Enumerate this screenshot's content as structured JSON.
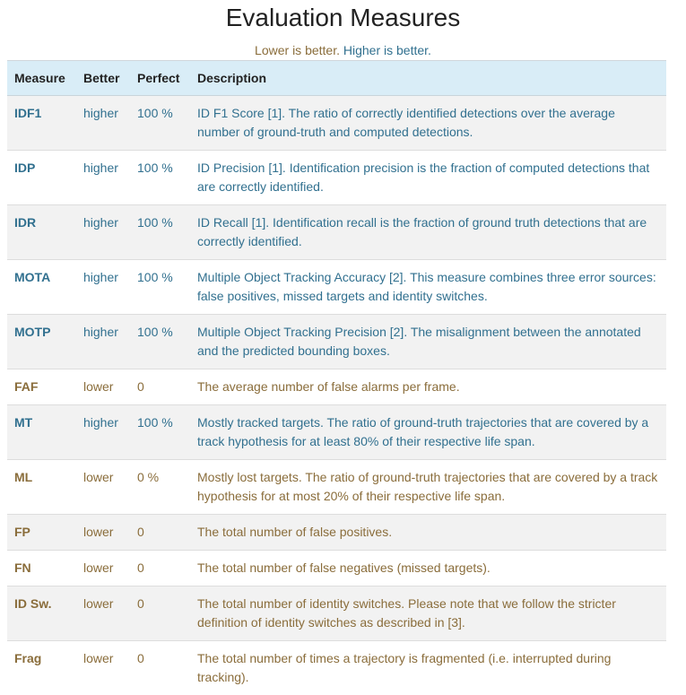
{
  "title": "Evaluation Measures",
  "legend": {
    "lower": "Lower is better.",
    "higher": "Higher is better."
  },
  "colors": {
    "header_bg": "#d9edf7",
    "higher_text": "#31708f",
    "lower_text": "#8a6d3b",
    "stripe": "#f2f2f2"
  },
  "table": {
    "headers": {
      "measure": "Measure",
      "better": "Better",
      "perfect": "Perfect",
      "description": "Description"
    },
    "rows": [
      {
        "measure": "IDF1",
        "better": "higher",
        "perfect": "100 %",
        "description": "ID F1 Score [1]. The ratio of correctly identified detections over the average number of ground-truth and computed detections."
      },
      {
        "measure": "IDP",
        "better": "higher",
        "perfect": "100 %",
        "description": "ID Precision [1]. Identification precision is the fraction of computed detections that are correctly identified."
      },
      {
        "measure": "IDR",
        "better": "higher",
        "perfect": "100 %",
        "description": "ID Recall [1]. Identification recall is the fraction of ground truth detections that are correctly identified."
      },
      {
        "measure": "MOTA",
        "better": "higher",
        "perfect": "100 %",
        "description": "Multiple Object Tracking Accuracy [2]. This measure combines three error sources: false positives, missed targets and identity switches."
      },
      {
        "measure": "MOTP",
        "better": "higher",
        "perfect": "100 %",
        "description": "Multiple Object Tracking Precision [2]. The misalignment between the annotated and the predicted bounding boxes."
      },
      {
        "measure": "FAF",
        "better": "lower",
        "perfect": "0",
        "description": "The average number of false alarms per frame."
      },
      {
        "measure": "MT",
        "better": "higher",
        "perfect": "100 %",
        "description": "Mostly tracked targets. The ratio of ground-truth trajectories that are covered by a track hypothesis for at least 80% of their respective life span."
      },
      {
        "measure": "ML",
        "better": "lower",
        "perfect": "0 %",
        "description": "Mostly lost targets. The ratio of ground-truth trajectories that are covered by a track hypothesis for at most 20% of their respective life span."
      },
      {
        "measure": "FP",
        "better": "lower",
        "perfect": "0",
        "description": "The total number of false positives."
      },
      {
        "measure": "FN",
        "better": "lower",
        "perfect": "0",
        "description": "The total number of false negatives (missed targets)."
      },
      {
        "measure": "ID Sw.",
        "better": "lower",
        "perfect": "0",
        "description": "The total number of identity switches. Please note that we follow the stricter definition of identity switches as described in [3]."
      },
      {
        "measure": "Frag",
        "better": "lower",
        "perfect": "0",
        "description": "The total number of times a trajectory is fragmented (i.e. interrupted during tracking)."
      }
    ]
  }
}
